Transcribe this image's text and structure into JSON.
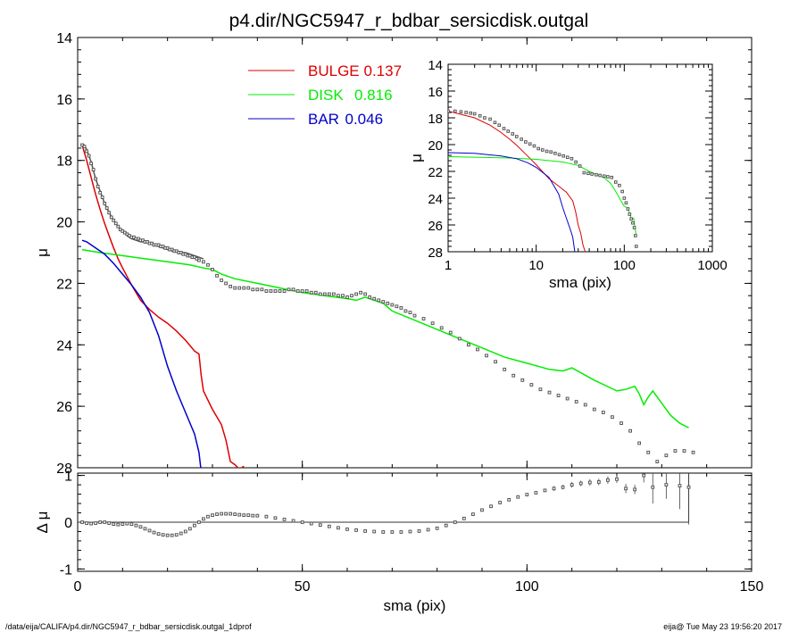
{
  "header": {
    "title": "p4.dir/NGC5947_r_bdbar_sersicdisk.outgal"
  },
  "footer": {
    "left": "/data/eija/CALIFA/p4.dir/NGC5947_r_bdbar_sersicdisk.outgal_1dprof",
    "right": "eija@  Tue May 23 19:56:20 2017"
  },
  "colors": {
    "bulge": "#dd0000",
    "disk": "#00ee00",
    "bar": "#0000cc",
    "data": "#555555",
    "model": "#555555"
  },
  "chart_data": [
    {
      "id": "main",
      "type": "scatter",
      "xlabel": "",
      "ylabel": "μ",
      "xlim": [
        0,
        150
      ],
      "ylim": [
        28,
        14
      ],
      "y_inverted": true,
      "x_ticks": [
        0,
        50,
        100,
        150
      ],
      "y_ticks": [
        14,
        16,
        18,
        20,
        22,
        24,
        26,
        28
      ],
      "legend": {
        "placement": "top-center",
        "entries": [
          {
            "label": "BULGE",
            "value": "0.137",
            "color": "#dd0000"
          },
          {
            "label": "DISK",
            "value": "0.816",
            "color": "#00ee00"
          },
          {
            "label": "BAR",
            "value": "0.046",
            "color": "#0000cc"
          }
        ]
      },
      "series": [
        {
          "name": "BULGE",
          "kind": "line",
          "color": "#dd0000",
          "x": [
            1,
            2,
            3,
            4,
            5,
            6,
            7,
            8,
            9,
            10,
            12,
            14,
            16,
            18,
            20,
            22,
            24,
            26,
            27,
            27.5,
            28,
            30,
            32,
            33,
            34,
            35,
            36,
            37
          ],
          "y": [
            17.5,
            18.0,
            18.55,
            19.1,
            19.6,
            20.05,
            20.45,
            20.85,
            21.2,
            21.5,
            22.05,
            22.55,
            22.85,
            23.1,
            23.3,
            23.55,
            23.85,
            24.2,
            24.3,
            25.0,
            25.5,
            26.1,
            26.6,
            27.1,
            27.8,
            27.9,
            28.05,
            27.95
          ]
        },
        {
          "name": "DISK",
          "kind": "line",
          "color": "#00ee00",
          "x": [
            1,
            5,
            10,
            15,
            20,
            25,
            28,
            30,
            32,
            35,
            40,
            45,
            50,
            55,
            60,
            62,
            64,
            66,
            68,
            70,
            75,
            80,
            85,
            90,
            95,
            100,
            105,
            108,
            110,
            115,
            120,
            122,
            124,
            125,
            126,
            127,
            128,
            130,
            132,
            134,
            136
          ],
          "y": [
            20.9,
            21.0,
            21.1,
            21.2,
            21.3,
            21.4,
            21.5,
            21.55,
            21.7,
            21.85,
            22.0,
            22.15,
            22.3,
            22.4,
            22.5,
            22.55,
            22.45,
            22.55,
            22.65,
            22.9,
            23.2,
            23.5,
            23.8,
            24.1,
            24.4,
            24.6,
            24.8,
            24.85,
            24.75,
            25.15,
            25.5,
            25.45,
            25.35,
            25.6,
            25.95,
            25.7,
            25.5,
            25.9,
            26.3,
            26.55,
            26.7
          ]
        },
        {
          "name": "BAR",
          "kind": "line",
          "color": "#0000cc",
          "x": [
            1,
            2,
            4,
            6,
            8,
            10,
            12,
            14,
            16,
            18,
            20,
            22,
            24,
            26,
            27,
            27.4
          ],
          "y": [
            20.6,
            20.65,
            20.85,
            21.05,
            21.35,
            21.7,
            22.05,
            22.45,
            22.95,
            23.7,
            24.7,
            25.5,
            26.2,
            26.9,
            27.5,
            28.0
          ]
        },
        {
          "name": "",
          "kind": "line",
          "color": "#555555",
          "x": [
            1,
            1.5,
            2,
            3,
            4,
            5,
            6,
            7,
            8,
            9,
            10,
            11,
            12,
            13,
            14,
            15,
            16,
            17,
            18,
            19,
            20,
            21,
            22,
            23,
            24,
            25,
            26,
            27,
            28
          ],
          "y": [
            17.5,
            17.5,
            17.65,
            18.05,
            18.6,
            19.0,
            19.4,
            19.7,
            19.95,
            20.15,
            20.3,
            20.45,
            20.55,
            20.6,
            20.65,
            20.65,
            20.7,
            20.75,
            20.8,
            20.85,
            20.9,
            20.95,
            20.95,
            21.0,
            21.0,
            21.05,
            21.1,
            21.15,
            21.2
          ]
        },
        {
          "name": "",
          "kind": "points",
          "color": "#555555",
          "x": [
            1,
            1.5,
            2,
            2.5,
            3,
            3.5,
            4,
            4.5,
            5,
            5.5,
            6,
            6.5,
            7,
            7.5,
            8,
            8.5,
            9,
            9.5,
            10,
            10.5,
            11,
            11.5,
            12,
            12.5,
            13,
            13.5,
            14,
            14.5,
            15,
            15.5,
            16,
            16.5,
            17,
            17.5,
            18,
            18.5,
            19,
            19.5,
            20,
            20.5,
            21,
            21.5,
            22,
            22.5,
            23,
            23.5,
            24,
            24.5,
            25,
            25.5,
            26,
            26.5,
            27,
            28,
            29,
            30,
            31,
            32,
            33,
            34,
            35,
            36,
            37,
            38,
            39,
            40,
            41,
            42,
            43,
            44,
            45,
            46,
            47,
            48,
            49,
            50,
            51,
            52,
            53,
            54,
            55,
            56,
            57,
            58,
            59,
            60,
            61,
            62,
            63,
            64,
            65,
            66,
            67,
            68,
            69,
            70,
            71,
            72,
            73,
            74,
            75,
            77,
            79,
            81,
            83,
            85,
            87,
            89,
            91,
            93,
            95,
            97,
            99,
            101,
            103,
            105,
            107,
            109,
            111,
            113,
            115,
            117,
            119,
            121,
            123,
            125,
            127,
            129,
            131,
            133,
            135,
            137
          ],
          "y": [
            17.5,
            17.55,
            17.7,
            17.85,
            18.1,
            18.3,
            18.6,
            18.85,
            19.05,
            19.2,
            19.4,
            19.55,
            19.7,
            19.85,
            19.95,
            20.05,
            20.15,
            20.25,
            20.3,
            20.35,
            20.4,
            20.45,
            20.5,
            20.5,
            20.55,
            20.55,
            20.6,
            20.6,
            20.65,
            20.65,
            20.7,
            20.7,
            20.75,
            20.75,
            20.75,
            20.8,
            20.8,
            20.85,
            20.85,
            20.9,
            20.9,
            20.95,
            20.95,
            21.0,
            21.0,
            21.05,
            21.05,
            21.1,
            21.1,
            21.15,
            21.15,
            21.2,
            21.25,
            21.3,
            21.4,
            21.55,
            21.75,
            21.9,
            22.0,
            22.1,
            22.15,
            22.15,
            22.15,
            22.15,
            22.2,
            22.2,
            22.2,
            22.25,
            22.25,
            22.25,
            22.25,
            22.25,
            22.2,
            22.2,
            22.25,
            22.25,
            22.25,
            22.3,
            22.3,
            22.35,
            22.35,
            22.35,
            22.35,
            22.4,
            22.4,
            22.45,
            22.4,
            22.35,
            22.3,
            22.35,
            22.45,
            22.5,
            22.55,
            22.6,
            22.65,
            22.7,
            22.75,
            22.8,
            22.9,
            22.95,
            23.05,
            23.15,
            23.3,
            23.45,
            23.6,
            23.8,
            24.0,
            24.15,
            24.35,
            24.55,
            24.8,
            25.0,
            25.15,
            25.3,
            25.45,
            25.55,
            25.65,
            25.75,
            25.85,
            25.95,
            26.1,
            26.2,
            26.35,
            26.55,
            26.8,
            27.2,
            27.5,
            27.8,
            27.6,
            27.45,
            27.45,
            27.5
          ]
        }
      ]
    },
    {
      "id": "residual",
      "type": "scatter",
      "xlabel": "sma (pix)",
      "ylabel": "Δ μ",
      "xlim": [
        0,
        150
      ],
      "ylim": [
        -1.05,
        1.05
      ],
      "x_ticks": [
        0,
        50,
        100,
        150
      ],
      "y_ticks": [
        -1,
        0,
        1
      ],
      "series": [
        {
          "name": "",
          "kind": "points",
          "color": "#555555",
          "x": [
            1,
            2,
            3,
            4,
            5,
            6,
            7,
            8,
            9,
            10,
            11,
            12,
            13,
            14,
            15,
            16,
            17,
            18,
            19,
            20,
            21,
            22,
            23,
            24,
            25,
            26,
            27,
            28,
            29,
            30,
            31,
            32,
            33,
            34,
            35,
            36,
            37,
            38,
            39,
            40,
            42,
            44,
            46,
            48,
            50,
            52,
            54,
            56,
            58,
            60,
            62,
            64,
            66,
            68,
            70,
            72,
            74,
            76,
            78,
            80,
            82,
            84,
            86,
            88,
            90,
            92,
            94,
            96,
            98,
            100,
            102,
            104,
            106,
            108,
            110,
            112,
            114,
            116,
            118,
            120,
            122,
            124,
            126,
            128,
            131,
            134,
            136
          ],
          "y": [
            0.0,
            -0.02,
            -0.03,
            -0.02,
            0.0,
            0.0,
            -0.02,
            -0.04,
            -0.05,
            -0.04,
            -0.03,
            -0.04,
            -0.07,
            -0.1,
            -0.14,
            -0.18,
            -0.22,
            -0.25,
            -0.27,
            -0.28,
            -0.28,
            -0.27,
            -0.24,
            -0.2,
            -0.14,
            -0.07,
            0.0,
            0.07,
            0.12,
            0.15,
            0.17,
            0.18,
            0.18,
            0.18,
            0.17,
            0.16,
            0.15,
            0.15,
            0.14,
            0.14,
            0.12,
            0.09,
            0.06,
            0.03,
            0.0,
            -0.03,
            -0.06,
            -0.09,
            -0.12,
            -0.15,
            -0.17,
            -0.19,
            -0.2,
            -0.21,
            -0.21,
            -0.21,
            -0.2,
            -0.19,
            -0.16,
            -0.13,
            -0.07,
            0.0,
            0.08,
            0.17,
            0.26,
            0.34,
            0.42,
            0.48,
            0.54,
            0.59,
            0.63,
            0.68,
            0.72,
            0.75,
            0.8,
            0.83,
            0.85,
            0.86,
            0.9,
            0.92,
            0.72,
            0.7,
            1.0,
            0.75,
            0.8,
            0.78,
            0.75
          ],
          "yerr": [
            0,
            0,
            0,
            0,
            0,
            0,
            0,
            0,
            0,
            0,
            0,
            0,
            0,
            0,
            0,
            0,
            0,
            0,
            0,
            0,
            0,
            0,
            0,
            0,
            0,
            0,
            0,
            0,
            0,
            0,
            0,
            0,
            0,
            0,
            0,
            0,
            0,
            0,
            0,
            0,
            0,
            0,
            0,
            0,
            0,
            0,
            0,
            0,
            0,
            0,
            0,
            0,
            0,
            0,
            0,
            0,
            0,
            0,
            0,
            0,
            0,
            0,
            0,
            0,
            0,
            0,
            0,
            0,
            0,
            0,
            0,
            0,
            0.05,
            0.05,
            0.06,
            0.06,
            0.07,
            0.07,
            0.08,
            0.08,
            0.1,
            0.1,
            0.15,
            0.35,
            0.3,
            0.5,
            0.8
          ]
        }
      ]
    },
    {
      "id": "inset",
      "type": "scatter",
      "xlabel": "sma (pix)",
      "ylabel": "μ",
      "xscale": "log",
      "xlim": [
        1,
        1000
      ],
      "ylim": [
        28,
        14
      ],
      "y_inverted": true,
      "x_ticks": [
        1,
        10,
        100,
        1000
      ],
      "y_ticks": [
        14,
        16,
        18,
        20,
        22,
        24,
        26,
        28
      ],
      "series": [
        {
          "name": "BULGE",
          "kind": "line",
          "color": "#dd0000",
          "x": [
            1,
            2,
            3,
            4,
            5,
            6,
            8,
            10,
            14,
            18,
            22,
            26,
            28,
            30,
            32,
            34,
            36,
            37
          ],
          "y": [
            17.5,
            18.0,
            18.55,
            19.1,
            19.6,
            20.05,
            20.85,
            21.5,
            22.55,
            23.1,
            23.55,
            24.2,
            25.0,
            26.0,
            26.6,
            27.5,
            28.0,
            28.2
          ]
        },
        {
          "name": "DISK",
          "kind": "line",
          "color": "#00ee00",
          "x": [
            1,
            5,
            10,
            20,
            30,
            40,
            60,
            70,
            80,
            90,
            100,
            110,
            120,
            128,
            136
          ],
          "y": [
            20.9,
            21.0,
            21.1,
            21.3,
            21.55,
            22.0,
            22.5,
            22.9,
            23.5,
            24.1,
            24.6,
            24.75,
            25.5,
            25.5,
            26.7
          ]
        },
        {
          "name": "BAR",
          "kind": "line",
          "color": "#0000cc",
          "x": [
            1,
            2,
            4,
            6,
            8,
            10,
            14,
            18,
            20,
            22,
            24,
            26,
            27.4
          ],
          "y": [
            20.6,
            20.65,
            20.85,
            21.05,
            21.35,
            21.7,
            22.45,
            23.7,
            24.7,
            25.5,
            26.2,
            26.9,
            28.0
          ]
        },
        {
          "name": "",
          "kind": "points",
          "color": "#555555",
          "x": [
            1,
            1.2,
            1.4,
            1.6,
            1.8,
            2,
            2.3,
            2.6,
            3,
            3.4,
            3.8,
            4.3,
            4.8,
            5.4,
            6,
            6.8,
            7.6,
            8.5,
            9.5,
            10.6,
            11.8,
            13.2,
            14.7,
            16.4,
            18.3,
            20.4,
            22.7,
            25.3,
            28.2,
            31.4,
            35,
            39,
            43,
            48,
            53,
            59,
            65,
            72,
            80,
            88,
            95,
            100,
            105,
            110,
            115,
            120,
            125,
            130,
            134,
            137
          ],
          "y": [
            17.5,
            17.5,
            17.55,
            17.6,
            17.65,
            17.7,
            17.85,
            18.0,
            18.1,
            18.35,
            18.55,
            18.8,
            19.0,
            19.2,
            19.4,
            19.6,
            19.8,
            19.95,
            20.1,
            20.3,
            20.4,
            20.5,
            20.55,
            20.65,
            20.75,
            20.85,
            20.95,
            21.05,
            21.3,
            21.6,
            22.1,
            22.15,
            22.2,
            22.25,
            22.3,
            22.35,
            22.4,
            22.45,
            22.8,
            23.05,
            23.5,
            24.0,
            24.35,
            24.8,
            25.2,
            25.55,
            25.85,
            26.2,
            26.8,
            27.6
          ]
        }
      ]
    }
  ]
}
